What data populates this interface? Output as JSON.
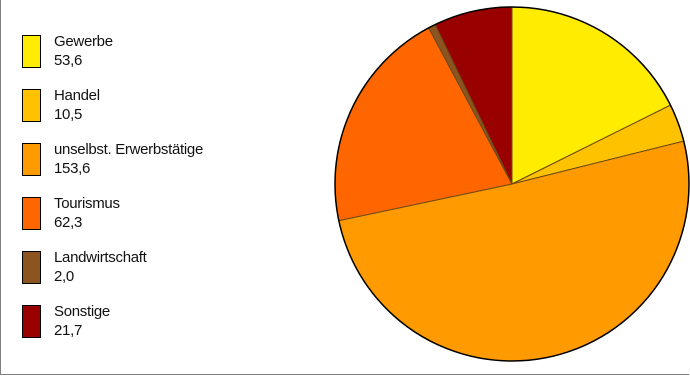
{
  "chart_data": {
    "type": "pie",
    "title": "",
    "slices": [
      {
        "label": "Gewerbe",
        "value": 53.6,
        "value_text": "53,6",
        "color": "#FFEC00"
      },
      {
        "label": "Handel",
        "value": 10.5,
        "value_text": "10,5",
        "color": "#FFC200"
      },
      {
        "label": "unselbst. Erwerbstätige",
        "value": 153.6,
        "value_text": "153,6",
        "color": "#FF9A00"
      },
      {
        "label": "Tourismus",
        "value": 62.3,
        "value_text": "62,3",
        "color": "#FF6600"
      },
      {
        "label": "Landwirtschaft",
        "value": 2.0,
        "value_text": "2,0",
        "color": "#8C5520"
      },
      {
        "label": "Sonstige",
        "value": 21.7,
        "value_text": "21,7",
        "color": "#990000"
      }
    ],
    "legend_position": "left",
    "start_angle": "top",
    "direction": "clockwise"
  }
}
